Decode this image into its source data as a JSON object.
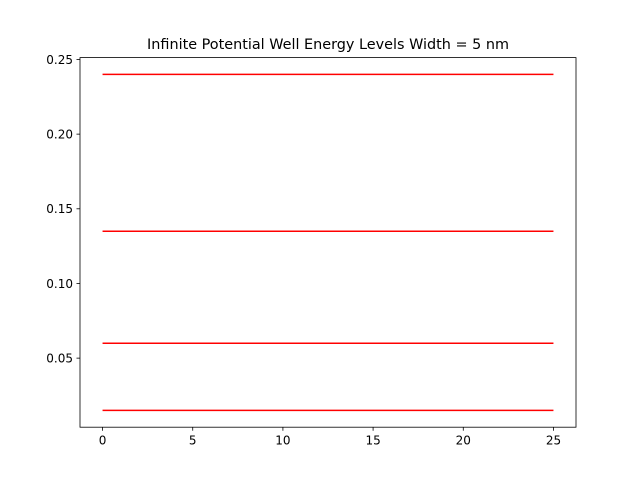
{
  "chart_data": {
    "type": "line",
    "title": "Infinite Potential Well Energy Levels Width = 5 nm",
    "xlabel": "",
    "ylabel": "",
    "xlim": [
      -1.25,
      26.25
    ],
    "ylim": [
      0.00375,
      0.25125
    ],
    "x_ticks": [
      0,
      5,
      10,
      15,
      20,
      25
    ],
    "x_tick_labels": [
      "0",
      "5",
      "10",
      "15",
      "20",
      "25"
    ],
    "y_ticks": [
      0.05,
      0.1,
      0.15,
      0.2,
      0.25
    ],
    "y_tick_labels": [
      "0.05",
      "0.10",
      "0.15",
      "0.20",
      "0.25"
    ],
    "grid": false,
    "legend": false,
    "series": [
      {
        "x": [
          0,
          25
        ],
        "y": [
          0.015,
          0.015
        ],
        "color": "#ff0000"
      },
      {
        "x": [
          0,
          25
        ],
        "y": [
          0.06,
          0.06
        ],
        "color": "#ff0000"
      },
      {
        "x": [
          0,
          25
        ],
        "y": [
          0.135,
          0.135
        ],
        "color": "#ff0000"
      },
      {
        "x": [
          0,
          25
        ],
        "y": [
          0.24,
          0.24
        ],
        "color": "#ff0000"
      }
    ]
  }
}
